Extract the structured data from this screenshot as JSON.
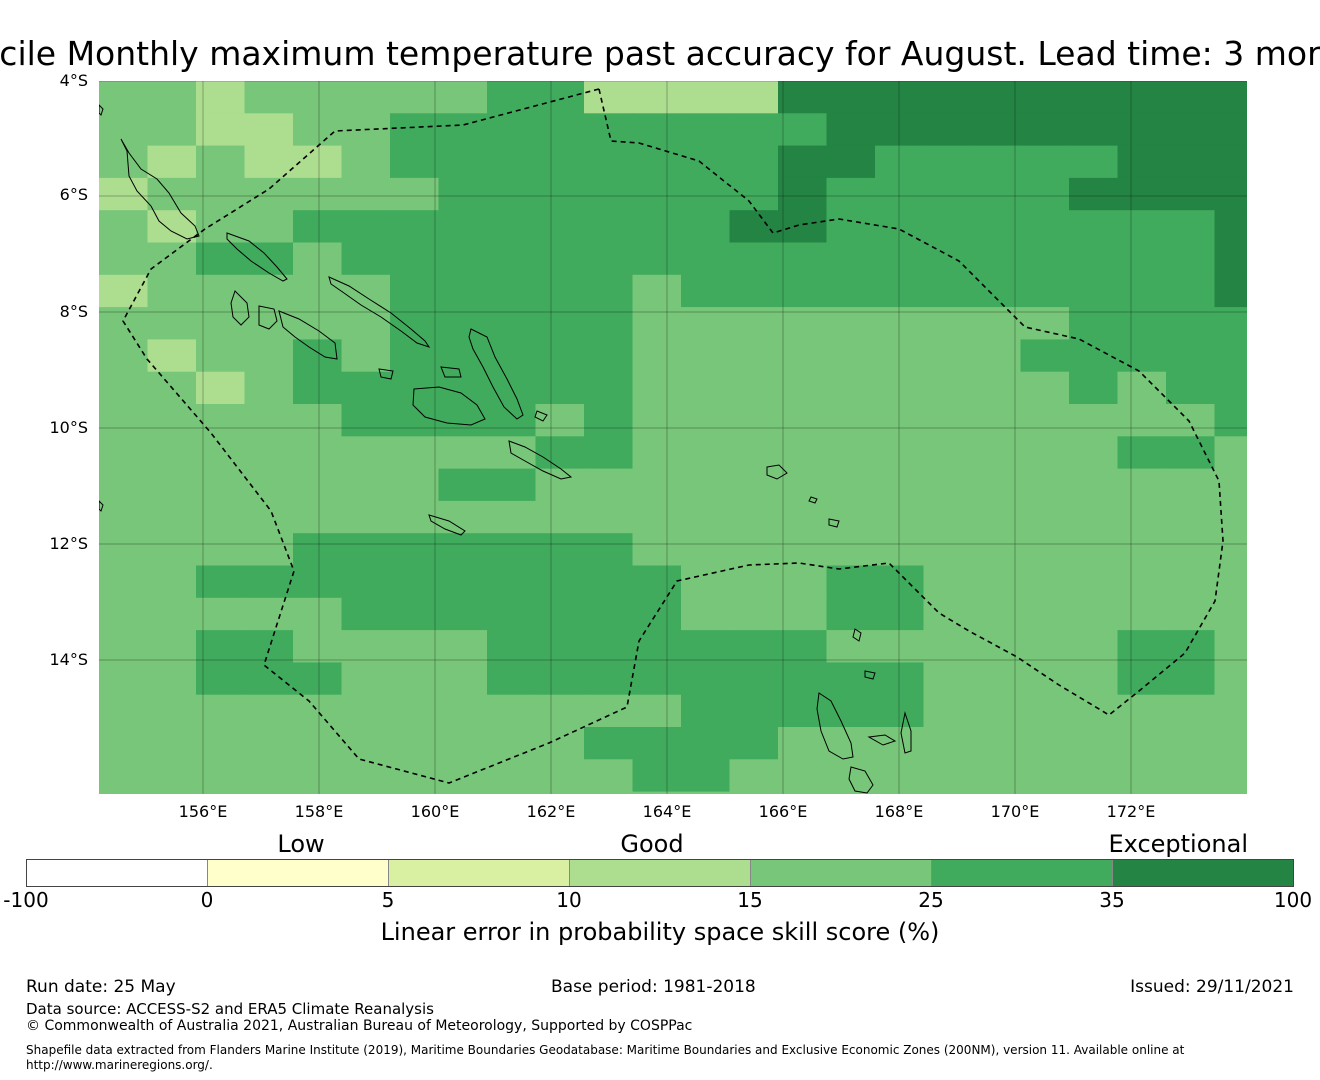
{
  "title": "cile Monthly maximum temperature past accuracy for August. Lead time: 3 mor",
  "map": {
    "lat_labels": [
      "4°S",
      "6°S",
      "8°S",
      "10°S",
      "12°S",
      "14°S"
    ],
    "lon_labels": [
      "156°E",
      "158°E",
      "160°E",
      "162°E",
      "164°E",
      "166°E",
      "168°E",
      "170°E",
      "172°E"
    ],
    "lon_range": [
      154.2,
      174.0
    ],
    "lat_range": [
      -4.0,
      -16.3
    ],
    "grid_cell_deg": 0.83,
    "boundary_style": "dashed",
    "gridlines": true
  },
  "legend": {
    "categories": [
      "Low",
      "Good",
      "Exceptional"
    ],
    "bins": [
      -100,
      0,
      5,
      10,
      15,
      25,
      35,
      100
    ],
    "tick_labels": [
      "-100",
      "0",
      "5",
      "10",
      "15",
      "25",
      "35",
      "100"
    ],
    "colors": [
      "#ffffff",
      "#ffffcc",
      "#d9f0a3",
      "#addd8e",
      "#78c679",
      "#41ab5d",
      "#238443"
    ],
    "label": "Linear error in probability space skill score (%)"
  },
  "footer": {
    "run_date": "Run date: 25 May",
    "base_period": "Base period: 1981-2018",
    "issued": "Issued: 29/11/2021",
    "data_source": "Data source: ACCESS-S2 and ERA5 Climate Reanalysis",
    "copyright": "© Commonwealth of Australia 2021, Australian Bureau of Meteorology, Supported by COSPPac",
    "shapefile_line1": "Shapefile data extracted from Flanders Marine Institute (2019), Maritime Boundaries Geodatabase: Maritime Boundaries and Exclusive Economic Zones (200NM), version 11. Available online at",
    "shapefile_line2": "http://www.marineregions.org/."
  }
}
